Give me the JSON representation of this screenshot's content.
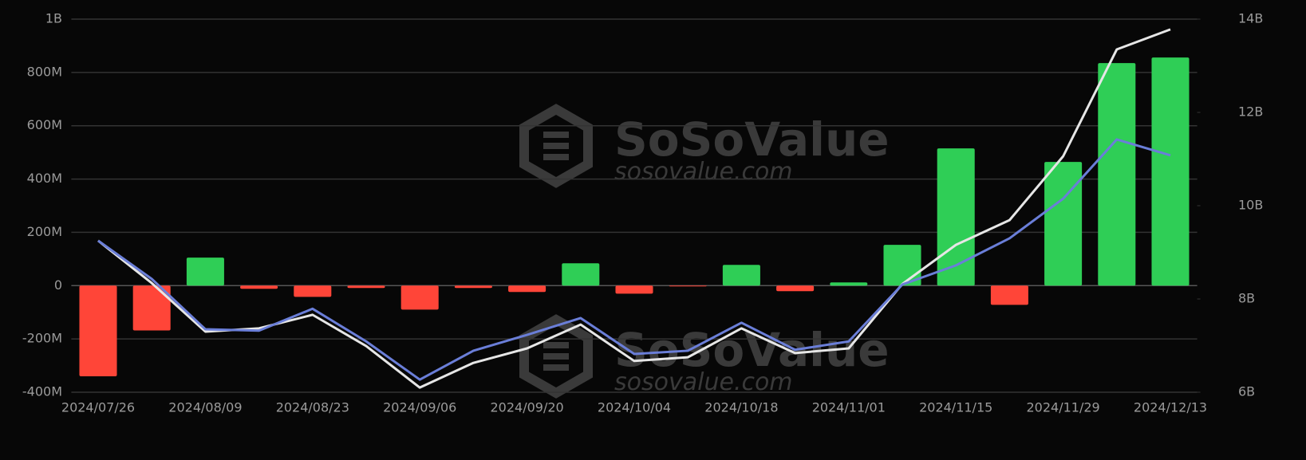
{
  "chart_data": {
    "type": "bar",
    "watermark": {
      "brand": "SoSoValue",
      "site": "sosovalue.com"
    },
    "categories": [
      "2024/07/26",
      null,
      "2024/08/09",
      null,
      "2024/08/23",
      null,
      "2024/09/06",
      null,
      "2024/09/20",
      null,
      "2024/10/04",
      null,
      "2024/10/18",
      null,
      "2024/11/01",
      null,
      "2024/11/15",
      null,
      "2024/11/29",
      null,
      "2024/12/13"
    ],
    "values": [
      -340000000,
      -168000000,
      105000000,
      -12000000,
      -42000000,
      -9000000,
      -90000000,
      -9000000,
      -24000000,
      84000000,
      -30000000,
      -3000000,
      78000000,
      -21000000,
      12000000,
      153000000,
      515000000,
      -72000000,
      464000000,
      835000000,
      856000000
    ],
    "color_positive": "#2fce56",
    "color_negative": "#ff4538",
    "series": [
      {
        "type": "line",
        "axis": "y2",
        "color": "#e6e6e6",
        "values": [
          9250000000,
          8340000000,
          7300000000,
          7370000000,
          7660000000,
          6990000000,
          6100000000,
          6630000000,
          6940000000,
          7450000000,
          6670000000,
          6750000000,
          7370000000,
          6840000000,
          6940000000,
          8320000000,
          9160000000,
          9690000000,
          11060000000,
          13350000000,
          13780000000
        ]
      },
      {
        "type": "line",
        "axis": "y2",
        "color": "#6a7ed8",
        "values": [
          9250000000,
          8430000000,
          7350000000,
          7320000000,
          7790000000,
          7090000000,
          6270000000,
          6890000000,
          7230000000,
          7590000000,
          6820000000,
          6890000000,
          7490000000,
          6910000000,
          7090000000,
          8310000000,
          8720000000,
          9300000000,
          10150000000,
          11420000000,
          11080000000
        ]
      }
    ],
    "ylim": [
      -400000000,
      1000000000
    ],
    "yticks": [
      {
        "value": -400000000,
        "label": "-400M"
      },
      {
        "value": -200000000,
        "label": "-200M"
      },
      0,
      {
        "value": 200000000,
        "label": "200M"
      },
      {
        "value": 400000000,
        "label": "400M"
      },
      {
        "value": 600000000,
        "label": "600M"
      },
      {
        "value": 800000000,
        "label": "800M"
      },
      {
        "value": 1000000000,
        "label": "1B"
      }
    ],
    "y2lim": [
      6000000000,
      14000000000
    ],
    "y2ticks": [
      {
        "value": 6000000000,
        "label": "6B"
      },
      {
        "value": 8000000000,
        "label": "8B"
      },
      {
        "value": 10000000000,
        "label": "10B"
      },
      {
        "value": 12000000000,
        "label": "12B"
      },
      {
        "value": 14000000000,
        "label": "14B"
      }
    ],
    "grid": true
  }
}
